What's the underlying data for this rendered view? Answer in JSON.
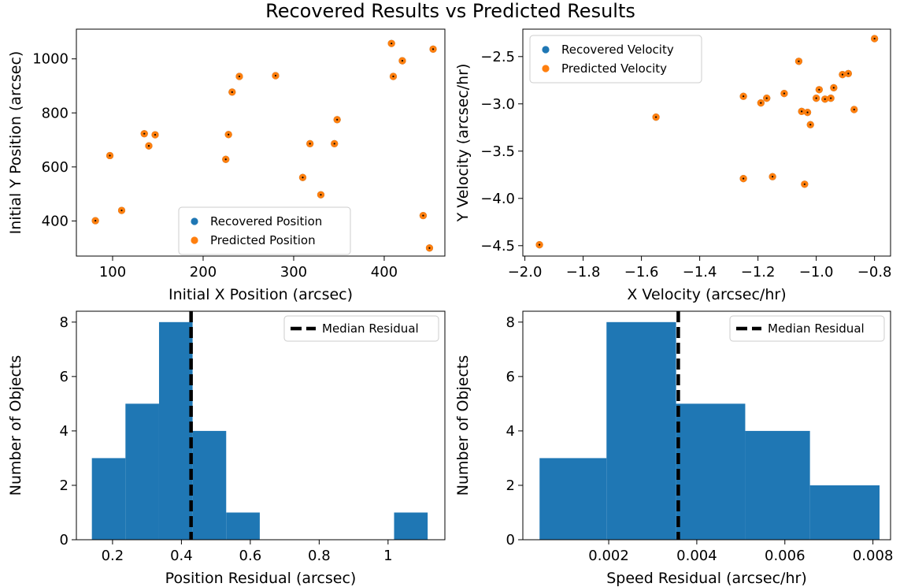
{
  "figure": {
    "title": "Recovered Results vs Predicted Results"
  },
  "colors": {
    "recovered": "#1f77b4",
    "predicted": "#ff7f0e",
    "bars": "#1f77b4",
    "median": "#000000",
    "center_dot": "#000000"
  },
  "chart_data": [
    {
      "type": "scatter",
      "xlabel": "Initial X Position (arcsec)",
      "ylabel": "Initial Y Position (arcsec)",
      "xlim": [
        60,
        467
      ],
      "ylim": [
        270,
        1110
      ],
      "xticks": [
        100,
        200,
        300,
        400
      ],
      "yticks": [
        400,
        600,
        800,
        1000
      ],
      "legend": {
        "location": "lower center",
        "entries": [
          "Recovered Position",
          "Predicted Position"
        ]
      },
      "series": [
        {
          "name": "Recovered Position",
          "color": "#1f77b4",
          "points": [
            [
              81,
              401
            ],
            [
              97,
              642
            ],
            [
              110,
              439
            ],
            [
              135,
              723
            ],
            [
              140,
              678
            ],
            [
              147,
              719
            ],
            [
              225,
              628
            ],
            [
              228,
              720
            ],
            [
              232,
              877
            ],
            [
              240,
              935
            ],
            [
              280,
              938
            ],
            [
              310,
              561
            ],
            [
              318,
              686
            ],
            [
              330,
              497
            ],
            [
              345,
              686
            ],
            [
              348,
              775
            ],
            [
              408,
              1057
            ],
            [
              410,
              935
            ],
            [
              420,
              993
            ],
            [
              443,
              420
            ],
            [
              450,
              300
            ],
            [
              454,
              1036
            ]
          ]
        },
        {
          "name": "Predicted Position",
          "color": "#ff7f0e",
          "points": [
            [
              81,
              401
            ],
            [
              97,
              642
            ],
            [
              110,
              439
            ],
            [
              135,
              723
            ],
            [
              140,
              678
            ],
            [
              147,
              719
            ],
            [
              225,
              628
            ],
            [
              228,
              720
            ],
            [
              232,
              877
            ],
            [
              240,
              935
            ],
            [
              280,
              938
            ],
            [
              310,
              561
            ],
            [
              318,
              686
            ],
            [
              330,
              497
            ],
            [
              345,
              686
            ],
            [
              348,
              775
            ],
            [
              408,
              1057
            ],
            [
              410,
              935
            ],
            [
              420,
              993
            ],
            [
              443,
              420
            ],
            [
              450,
              300
            ],
            [
              454,
              1036
            ]
          ]
        }
      ]
    },
    {
      "type": "scatter",
      "xlabel": "X Velocity (arcsec/hr)",
      "ylabel": "Y Velocity (arcsec/hr)",
      "xlim": [
        -2.007,
        -0.745
      ],
      "ylim": [
        -4.61,
        -2.21
      ],
      "xticks": [
        -2.0,
        -1.8,
        -1.6,
        -1.4,
        -1.2,
        -1.0,
        -0.8
      ],
      "xtick_labels": [
        "−2.0",
        "−1.8",
        "−1.6",
        "−1.4",
        "−1.2",
        "−1.0",
        "−0.8"
      ],
      "yticks": [
        -4.5,
        -4.0,
        -3.5,
        -3.0,
        -2.5
      ],
      "ytick_labels": [
        "−4.5",
        "−4.0",
        "−3.5",
        "−3.0",
        "−2.5"
      ],
      "legend": {
        "location": "upper left",
        "entries": [
          "Recovered Velocity",
          "Predicted Velocity"
        ]
      },
      "series": [
        {
          "name": "Recovered Velocity",
          "color": "#1f77b4",
          "points": [
            [
              -1.95,
              -4.49
            ],
            [
              -1.55,
              -3.14
            ],
            [
              -1.25,
              -3.79
            ],
            [
              -1.25,
              -2.92
            ],
            [
              -1.19,
              -2.99
            ],
            [
              -1.17,
              -2.94
            ],
            [
              -1.15,
              -3.77
            ],
            [
              -1.11,
              -2.89
            ],
            [
              -1.06,
              -2.55
            ],
            [
              -1.05,
              -3.08
            ],
            [
              -1.04,
              -3.85
            ],
            [
              -1.03,
              -3.09
            ],
            [
              -1.02,
              -3.22
            ],
            [
              -1.0,
              -2.94
            ],
            [
              -0.99,
              -2.85
            ],
            [
              -0.97,
              -2.95
            ],
            [
              -0.95,
              -2.94
            ],
            [
              -0.94,
              -2.83
            ],
            [
              -0.91,
              -2.69
            ],
            [
              -0.89,
              -2.68
            ],
            [
              -0.87,
              -3.06
            ],
            [
              -0.8,
              -2.31
            ]
          ]
        },
        {
          "name": "Predicted Velocity",
          "color": "#ff7f0e",
          "points": [
            [
              -1.95,
              -4.49
            ],
            [
              -1.55,
              -3.14
            ],
            [
              -1.25,
              -3.79
            ],
            [
              -1.25,
              -2.92
            ],
            [
              -1.19,
              -2.99
            ],
            [
              -1.17,
              -2.94
            ],
            [
              -1.15,
              -3.77
            ],
            [
              -1.11,
              -2.89
            ],
            [
              -1.06,
              -2.55
            ],
            [
              -1.05,
              -3.08
            ],
            [
              -1.04,
              -3.85
            ],
            [
              -1.03,
              -3.09
            ],
            [
              -1.02,
              -3.22
            ],
            [
              -1.0,
              -2.94
            ],
            [
              -0.99,
              -2.85
            ],
            [
              -0.97,
              -2.95
            ],
            [
              -0.95,
              -2.94
            ],
            [
              -0.94,
              -2.83
            ],
            [
              -0.91,
              -2.69
            ],
            [
              -0.89,
              -2.68
            ],
            [
              -0.87,
              -3.06
            ],
            [
              -0.8,
              -2.31
            ]
          ]
        }
      ]
    },
    {
      "type": "bar",
      "subtype": "histogram",
      "xlabel": "Position Residual (arcsec)",
      "ylabel": "Number of Objects",
      "xlim": [
        0.095,
        1.165
      ],
      "ylim": [
        0,
        8.4
      ],
      "xticks": [
        0.2,
        0.4,
        0.6,
        0.8,
        1.0
      ],
      "yticks": [
        0,
        2,
        4,
        6,
        8
      ],
      "bin_edges": [
        0.14,
        0.2375,
        0.335,
        0.4325,
        0.53,
        0.6275,
        0.725,
        0.8225,
        0.92,
        1.0175,
        1.115
      ],
      "counts": [
        3,
        5,
        8,
        4,
        1,
        0,
        0,
        0,
        0,
        1
      ],
      "median": 0.428,
      "legend": {
        "location": "upper right",
        "entries": [
          "Median Residual"
        ]
      }
    },
    {
      "type": "bar",
      "subtype": "histogram",
      "xlabel": "Speed Residual (arcsec/hr)",
      "ylabel": "Number of Objects",
      "xlim": [
        5e-05,
        0.0084
      ],
      "ylim": [
        0,
        8.4
      ],
      "xticks": [
        0.002,
        0.004,
        0.006,
        0.008
      ],
      "yticks": [
        0,
        2,
        4,
        6,
        8
      ],
      "bin_edges": [
        0.00043,
        0.00195,
        0.00353,
        0.0051,
        0.00657,
        0.00815
      ],
      "counts": [
        3,
        8,
        5,
        4,
        2
      ],
      "median": 0.00358,
      "legend": {
        "location": "upper right",
        "entries": [
          "Median Residual"
        ]
      }
    }
  ]
}
